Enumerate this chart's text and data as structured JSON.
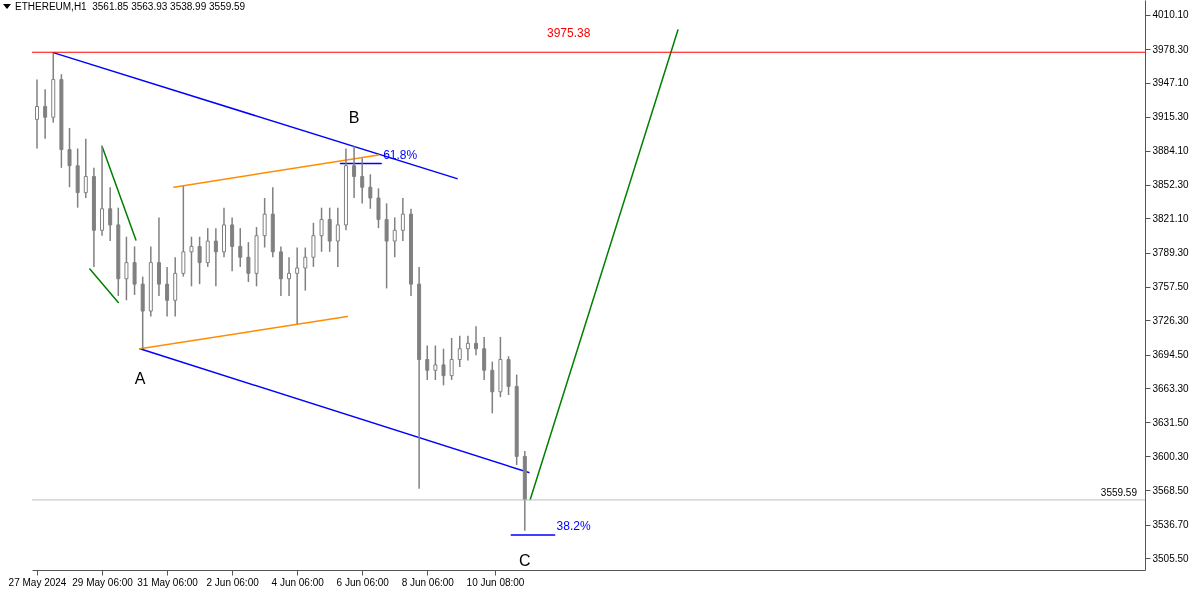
{
  "chart_data": {
    "type": "candlestick",
    "title": "ETHEREUM,H1  3561.85 3563.93 3538.99 3559.59",
    "color": "#808080",
    "x": [
      "2024-05-27T06:00",
      "2024-05-27T12:00",
      "2024-05-27T18:00",
      "2024-05-28T00:00",
      "2024-05-28T06:00",
      "2024-05-28T12:00",
      "2024-05-28T18:00",
      "2024-05-29T00:00",
      "2024-05-29T06:00",
      "2024-05-29T12:00",
      "2024-05-29T18:00",
      "2024-05-30T00:00",
      "2024-05-30T06:00",
      "2024-05-30T12:00",
      "2024-05-30T18:00",
      "2024-05-31T00:00",
      "2024-05-31T06:00",
      "2024-05-31T12:00",
      "2024-05-31T18:00",
      "2024-06-01T00:00",
      "2024-06-01T06:00",
      "2024-06-01T12:00",
      "2024-06-01T18:00",
      "2024-06-02T00:00",
      "2024-06-02T06:00",
      "2024-06-02T12:00",
      "2024-06-02T18:00",
      "2024-06-03T00:00",
      "2024-06-03T06:00",
      "2024-06-03T12:00",
      "2024-06-03T18:00",
      "2024-06-04T00:00",
      "2024-06-04T06:00",
      "2024-06-04T12:00",
      "2024-06-04T18:00",
      "2024-06-05T00:00",
      "2024-06-05T06:00",
      "2024-06-05T12:00",
      "2024-06-05T18:00",
      "2024-06-06T00:00",
      "2024-06-06T06:00",
      "2024-06-06T12:00",
      "2024-06-06T18:00",
      "2024-06-07T00:00",
      "2024-06-07T06:00",
      "2024-06-07T12:00",
      "2024-06-07T18:00",
      "2024-06-08T00:00",
      "2024-06-08T06:00",
      "2024-06-08T12:00",
      "2024-06-08T18:00",
      "2024-06-09T00:00",
      "2024-06-09T06:00",
      "2024-06-09T12:00",
      "2024-06-09T18:00",
      "2024-06-10T00:00",
      "2024-06-10T06:00",
      "2024-06-10T12:00",
      "2024-06-10T18:00",
      "2024-06-11T00:00",
      "2024-06-11T06:00"
    ],
    "ohlc": [
      [
        3913,
        3950,
        3886,
        3925
      ],
      [
        3925,
        3941,
        3895,
        3915
      ],
      [
        3915,
        3975,
        3910,
        3950
      ],
      [
        3950,
        3955,
        3868,
        3885
      ],
      [
        3885,
        3905,
        3850,
        3870
      ],
      [
        3870,
        3886,
        3831,
        3845
      ],
      [
        3845,
        3895,
        3840,
        3860
      ],
      [
        3860,
        3868,
        3776,
        3810
      ],
      [
        3810,
        3888,
        3805,
        3830
      ],
      [
        3830,
        3850,
        3800,
        3815
      ],
      [
        3815,
        3831,
        3749,
        3765
      ],
      [
        3765,
        3804,
        3745,
        3780
      ],
      [
        3780,
        3795,
        3750,
        3760
      ],
      [
        3760,
        3767,
        3700,
        3735
      ],
      [
        3735,
        3795,
        3730,
        3780
      ],
      [
        3780,
        3822,
        3749,
        3760
      ],
      [
        3760,
        3776,
        3730,
        3745
      ],
      [
        3745,
        3785,
        3730,
        3770
      ],
      [
        3770,
        3851,
        3767,
        3790
      ],
      [
        3790,
        3804,
        3758,
        3795
      ],
      [
        3795,
        3804,
        3760,
        3780
      ],
      [
        3780,
        3812,
        3776,
        3800
      ],
      [
        3800,
        3812,
        3758,
        3790
      ],
      [
        3790,
        3831,
        3785,
        3815
      ],
      [
        3815,
        3822,
        3772,
        3795
      ],
      [
        3795,
        3812,
        3776,
        3785
      ],
      [
        3785,
        3799,
        3762,
        3770
      ],
      [
        3770,
        3813,
        3758,
        3805
      ],
      [
        3805,
        3840,
        3794,
        3825
      ],
      [
        3825,
        3850,
        3785,
        3790
      ],
      [
        3790,
        3795,
        3749,
        3765
      ],
      [
        3765,
        3785,
        3749,
        3770
      ],
      [
        3770,
        3794,
        3723,
        3775
      ],
      [
        3775,
        3794,
        3754,
        3785
      ],
      [
        3785,
        3817,
        3776,
        3805
      ],
      [
        3805,
        3831,
        3790,
        3820
      ],
      [
        3820,
        3831,
        3790,
        3800
      ],
      [
        3800,
        3831,
        3776,
        3815
      ],
      [
        3815,
        3886,
        3810,
        3870
      ],
      [
        3870,
        3888,
        3840,
        3860
      ],
      [
        3860,
        3877,
        3835,
        3850
      ],
      [
        3850,
        3862,
        3830,
        3840
      ],
      [
        3840,
        3849,
        3812,
        3820
      ],
      [
        3820,
        3835,
        3756,
        3800
      ],
      [
        3800,
        3822,
        3785,
        3810
      ],
      [
        3810,
        3840,
        3800,
        3825
      ],
      [
        3825,
        3830,
        3749,
        3760
      ],
      [
        3760,
        3776,
        3570,
        3690
      ],
      [
        3690,
        3703,
        3671,
        3680
      ],
      [
        3680,
        3703,
        3671,
        3685
      ],
      [
        3685,
        3700,
        3666,
        3675
      ],
      [
        3675,
        3710,
        3671,
        3690
      ],
      [
        3690,
        3712,
        3683,
        3700
      ],
      [
        3700,
        3712,
        3689,
        3705
      ],
      [
        3705,
        3721,
        3694,
        3700
      ],
      [
        3700,
        3711,
        3671,
        3680
      ],
      [
        3680,
        3688,
        3640,
        3660
      ],
      [
        3660,
        3711,
        3655,
        3690
      ],
      [
        3690,
        3693,
        3657,
        3665
      ],
      [
        3665,
        3676,
        3592,
        3600
      ],
      [
        3600,
        3605,
        3531,
        3559.59
      ]
    ],
    "series": [
      {
        "type": "line",
        "color": "#0000ff",
        "x": [
          "2024-05-27T18:00",
          "2024-06-09T04:00"
        ],
        "values": [
          3975,
          3858
        ]
      },
      {
        "type": "line",
        "color": "#0000ff",
        "x": [
          "2024-05-30T10:00",
          "2024-06-11T09:00"
        ],
        "values": [
          3700,
          3585
        ]
      },
      {
        "type": "line",
        "color": "#ff8c00",
        "x": [
          "2024-05-31T11:00",
          "2024-06-06T18:00"
        ],
        "values": [
          3850,
          3880
        ]
      },
      {
        "type": "line",
        "color": "#ff8c00",
        "x": [
          "2024-05-30T10:00",
          "2024-06-05T19:00"
        ],
        "values": [
          3700,
          3730
        ]
      },
      {
        "type": "line",
        "color": "#008000",
        "x": [
          "2024-05-29T06:00",
          "2024-05-30T07:00"
        ],
        "values": [
          3888,
          3801
        ]
      },
      {
        "type": "line",
        "color": "#008000",
        "x": [
          "2024-05-28T21:00",
          "2024-05-29T18:00"
        ],
        "values": [
          3774,
          3743
        ]
      },
      {
        "type": "line",
        "color": "#008000",
        "x": [
          "2024-06-11T10:00",
          "2024-06-15T23:00"
        ],
        "values": [
          3560,
          3996
        ]
      },
      {
        "type": "line",
        "name": "61.8%",
        "color": "#0000ff",
        "x": [
          "2024-06-05T14:00",
          "2024-06-06T20:00"
        ],
        "values": [
          3872,
          3872
        ]
      },
      {
        "type": "line",
        "name": "38.2%",
        "color": "#0000ff",
        "x": [
          "2024-06-10T20:00",
          "2024-06-12T04:00"
        ],
        "values": [
          3527,
          3527
        ]
      }
    ],
    "xlim": [
      "2024-05-27T06:00",
      "2024-06-30T04:00"
    ],
    "ylim": [
      3494.5,
      4023.9
    ],
    "xticks": [
      {
        "value": "2024-05-27T06:00",
        "label": "27 May 2024"
      },
      {
        "value": "2024-05-29T06:00",
        "label": "29 May 06:00"
      },
      {
        "value": "2024-05-31T06:00",
        "label": "31 May 06:00"
      },
      {
        "value": "2024-06-02T06:00",
        "label": "2 Jun 06:00"
      },
      {
        "value": "2024-06-04T06:00",
        "label": "4 Jun 06:00"
      },
      {
        "value": "2024-06-06T06:00",
        "label": "6 Jun 06:00"
      },
      {
        "value": "2024-06-08T06:00",
        "label": "8 Jun 06:00"
      },
      {
        "value": "2024-06-10T08:00",
        "label": "10 Jun 08:00"
      }
    ],
    "yticks": [
      {
        "value": 3505.5,
        "label": "3505.50"
      },
      {
        "value": 3536.7,
        "label": "3536.70"
      },
      {
        "value": 3568.5,
        "label": "3568.50"
      },
      {
        "value": 3600.3,
        "label": "3600.30"
      },
      {
        "value": 3631.5,
        "label": "3631.50"
      },
      {
        "value": 3663.3,
        "label": "3663.30"
      },
      {
        "value": 3694.5,
        "label": "3694.50"
      },
      {
        "value": 3726.3,
        "label": "3726.30"
      },
      {
        "value": 3757.5,
        "label": "3757.50"
      },
      {
        "value": 3789.3,
        "label": "3789.30"
      },
      {
        "value": 3821.1,
        "label": "3821.10"
      },
      {
        "value": 3852.3,
        "label": "3852.30"
      },
      {
        "value": 3884.1,
        "label": "3884.10"
      },
      {
        "value": 3915.3,
        "label": "3915.30"
      },
      {
        "value": 3947.1,
        "label": "3947.10"
      },
      {
        "value": 3978.3,
        "label": "3978.30"
      },
      {
        "value": 4010.1,
        "label": "4010.10"
      }
    ],
    "ref_lines": [
      {
        "axis": "y",
        "value": 3975.38,
        "label": "3975.38",
        "color": "#ff0000"
      },
      {
        "axis": "y",
        "value": 3559.59,
        "label": "3559.59",
        "color": "#c0c0c0"
      }
    ],
    "annotations": [
      {
        "text": "A",
        "x": "2024-05-30T10:00",
        "y": 3700
      },
      {
        "text": "B",
        "x": "2024-06-06T00:00",
        "y": 3888
      },
      {
        "text": "C",
        "x": "2024-06-11T06:00",
        "y": 3531
      }
    ]
  }
}
